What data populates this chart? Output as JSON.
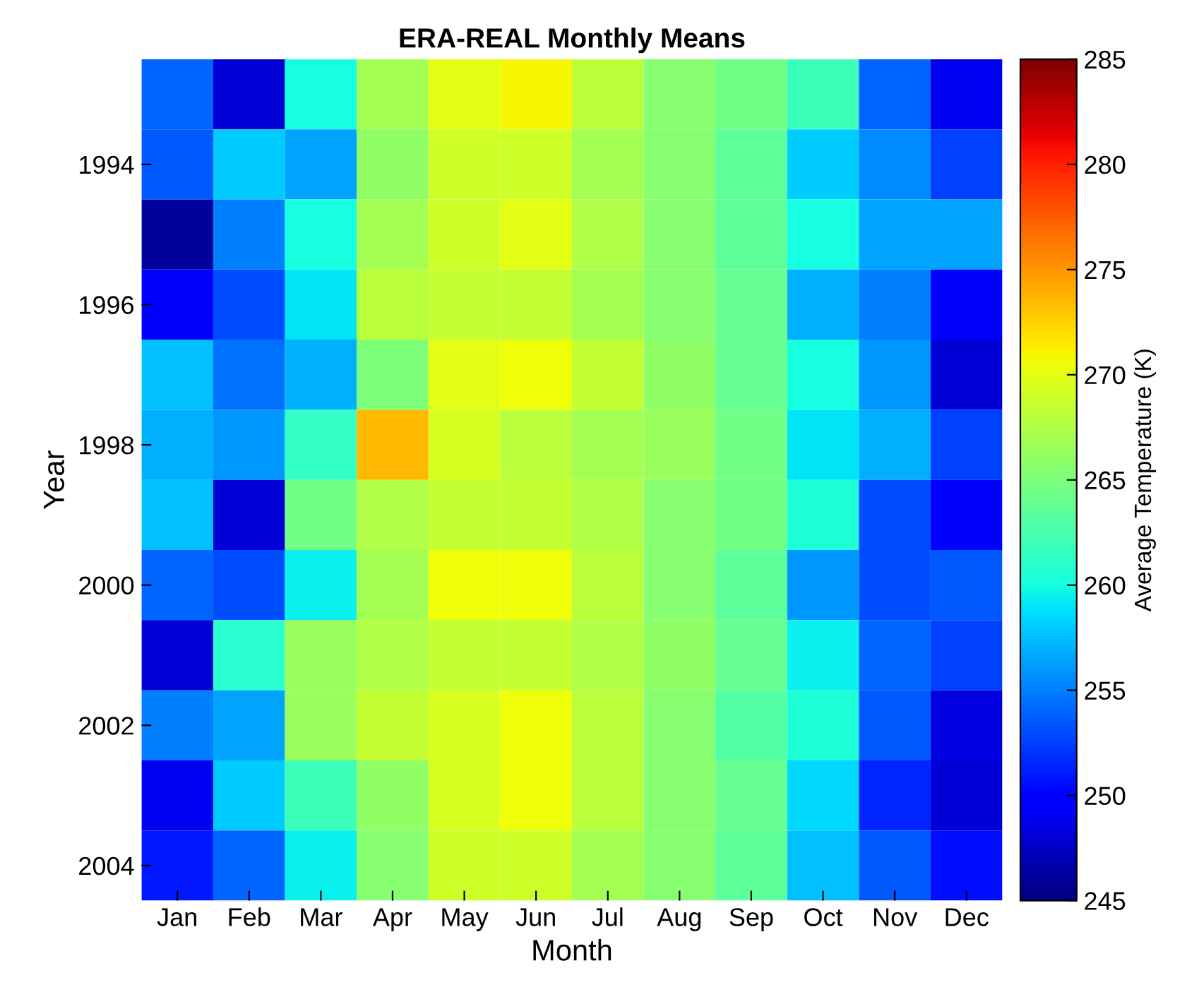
{
  "chart_data": {
    "type": "heatmap",
    "title": "ERA-REAL Monthly Means",
    "xlabel": "Month",
    "ylabel": "Year",
    "clabel": "Average Temperature (K)",
    "categories": [
      "Jan",
      "Feb",
      "Mar",
      "Apr",
      "May",
      "Jun",
      "Jul",
      "Aug",
      "Sep",
      "Oct",
      "Nov",
      "Dec"
    ],
    "y_categories": [
      null,
      "1994",
      null,
      "1996",
      null,
      "1998",
      null,
      "2000",
      null,
      "2002",
      null,
      "2004"
    ],
    "cells": [
      [
        254,
        248,
        260,
        267,
        270,
        271,
        268,
        265.5,
        264.5,
        262,
        254,
        249
      ],
      [
        253.5,
        258,
        256.5,
        266,
        269,
        269,
        267,
        265.5,
        263.5,
        258,
        255.5,
        252.5
      ],
      [
        246,
        255,
        260,
        267,
        269,
        270,
        267.5,
        265.5,
        263.5,
        260,
        256.5,
        256.5
      ],
      [
        249.5,
        253,
        259,
        268,
        268.5,
        268.5,
        267,
        265.5,
        264,
        257,
        255,
        249.5
      ],
      [
        257.5,
        254.5,
        257,
        265,
        270,
        270.5,
        268.5,
        266,
        264,
        260,
        256,
        248
      ],
      [
        257,
        256,
        261.5,
        273.5,
        269.5,
        268,
        267,
        266.5,
        264.5,
        259,
        257,
        252.5
      ],
      [
        257.5,
        248,
        264.5,
        267.5,
        268.5,
        268.5,
        267.5,
        265.5,
        264.5,
        260.5,
        253,
        249.5
      ],
      [
        254,
        253,
        259.5,
        267,
        270.5,
        270.5,
        268,
        265.5,
        263.5,
        256,
        253,
        253.5
      ],
      [
        248,
        261,
        266.5,
        267.5,
        268.5,
        268.5,
        267.5,
        266,
        264,
        259.5,
        254,
        252.5
      ],
      [
        255,
        256.5,
        266.5,
        268.5,
        269.5,
        270.5,
        268,
        265.5,
        263,
        260.5,
        253.5,
        248.5
      ],
      [
        249,
        258,
        262,
        266,
        269.5,
        270.5,
        268,
        265.5,
        264,
        258.5,
        251.5,
        248
      ],
      [
        251,
        254,
        259.5,
        265.5,
        269,
        269,
        267,
        265.5,
        263.5,
        257.5,
        253.5,
        250.5
      ]
    ],
    "clim": [
      245,
      285
    ],
    "cticks": [
      245,
      250,
      255,
      260,
      265,
      270,
      275,
      280,
      285
    ]
  }
}
